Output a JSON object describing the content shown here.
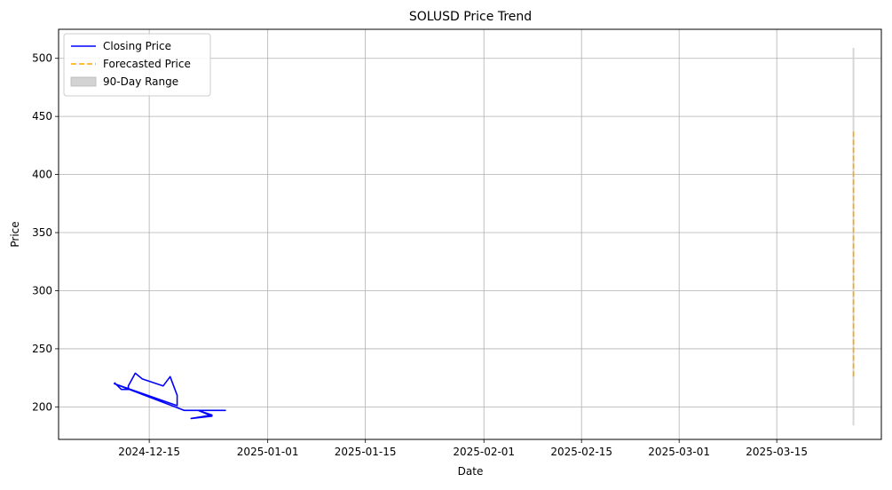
{
  "chart_data": {
    "type": "line",
    "title": "SOLUSD Price Trend",
    "xlabel": "Date",
    "ylabel": "Price",
    "grid": true,
    "legend_position": "top-left",
    "xlim": [
      "2024-12-02",
      "2025-03-30"
    ],
    "ylim": [
      172,
      525
    ],
    "x_ticks": [
      "2024-12-15",
      "2025-01-01",
      "2025-01-15",
      "2025-02-01",
      "2025-02-15",
      "2025-03-01",
      "2025-03-15"
    ],
    "y_ticks": [
      200,
      250,
      300,
      350,
      400,
      450,
      500
    ],
    "series": [
      {
        "name": "Closing Price",
        "style": "line",
        "color": "#0000ff",
        "points": [
          {
            "x": "2024-12-10",
            "y": 221
          },
          {
            "x": "2024-12-11",
            "y": 215
          },
          {
            "x": "2024-12-12",
            "y": 215
          },
          {
            "x": "2024-12-12",
            "y": 218
          },
          {
            "x": "2024-12-13",
            "y": 229
          },
          {
            "x": "2024-12-14",
            "y": 224
          },
          {
            "x": "2024-12-17",
            "y": 218
          },
          {
            "x": "2024-12-18",
            "y": 226
          },
          {
            "x": "2024-12-19",
            "y": 210
          },
          {
            "x": "2024-12-19",
            "y": 201
          },
          {
            "x": "2024-12-10",
            "y": 220
          },
          {
            "x": "2024-12-20",
            "y": 197
          },
          {
            "x": "2024-12-22",
            "y": 197
          },
          {
            "x": "2024-12-24",
            "y": 193
          },
          {
            "x": "2024-12-21",
            "y": 190
          },
          {
            "x": "2024-12-24",
            "y": 192
          },
          {
            "x": "2024-12-22",
            "y": 197
          },
          {
            "x": "2024-12-26",
            "y": 197
          }
        ]
      },
      {
        "name": "Forecasted Price",
        "style": "dashed",
        "color": "#ffa500",
        "points": [
          {
            "x": "2025-03-26",
            "y": 437
          },
          {
            "x": "2025-03-26",
            "y": 385
          },
          {
            "x": "2025-03-26",
            "y": 355
          },
          {
            "x": "2025-03-26",
            "y": 300
          },
          {
            "x": "2025-03-26",
            "y": 260
          },
          {
            "x": "2025-03-26",
            "y": 226
          }
        ]
      },
      {
        "name": "90-Day Range",
        "style": "range",
        "color": "#d3d3d3",
        "x": "2025-03-26",
        "low": 184,
        "high": 509
      }
    ]
  }
}
